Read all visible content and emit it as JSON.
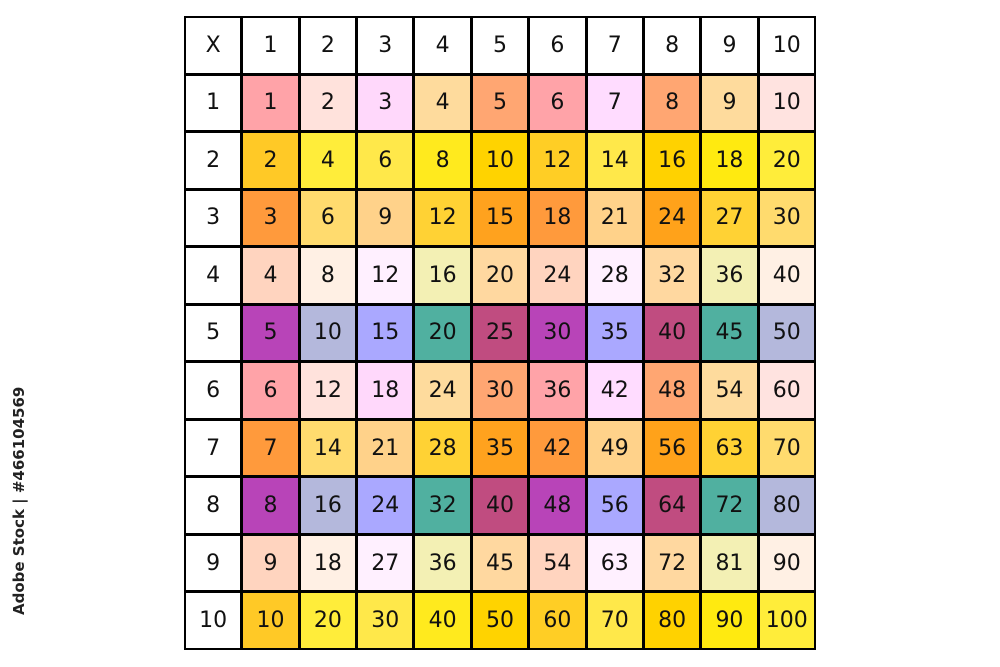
{
  "corner": "X",
  "headers": [
    "1",
    "2",
    "3",
    "4",
    "5",
    "6",
    "7",
    "8",
    "9",
    "10"
  ],
  "watermark": "Adobe Stock | #466104569",
  "palettes": {
    "A": [
      "#ffa3a8",
      "#ffe2dc",
      "#ffd8fb",
      "#fedb9d",
      "#ffa672",
      "#ffa3a8",
      "#ffdcff",
      "#ffa672",
      "#fedb9d",
      "#ffe3e0"
    ],
    "B": [
      "#ffc926",
      "#ffed3a",
      "#ffe84a",
      "#ffea1e",
      "#ffd300",
      "#ffce25",
      "#ffe84a",
      "#ffd200",
      "#ffea10",
      "#ffed3a"
    ],
    "C": [
      "#ff9a3c",
      "#ffdb6e",
      "#ffd28a",
      "#ffd234",
      "#ffa21e",
      "#ff9a3c",
      "#ffd28a",
      "#ffa21a",
      "#ffd234",
      "#ffdb6e"
    ],
    "D": [
      "#ffd4bf",
      "#fff0e4",
      "#fff0ff",
      "#f3f0b4",
      "#ffd8a0",
      "#ffd4bf",
      "#fff0ff",
      "#ffd8a0",
      "#f3f0b4",
      "#fff0e4"
    ],
    "E": [
      "#b844b8",
      "#b4b8dc",
      "#aaa8ff",
      "#50b0a0",
      "#c04c80",
      "#b844b8",
      "#aaa8ff",
      "#c04c80",
      "#50b0a0",
      "#b4b8dc"
    ]
  },
  "rows": [
    {
      "label": "1",
      "palette": "A",
      "values": [
        "1",
        "2",
        "3",
        "4",
        "5",
        "6",
        "7",
        "8",
        "9",
        "10"
      ]
    },
    {
      "label": "2",
      "palette": "B",
      "values": [
        "2",
        "4",
        "6",
        "8",
        "10",
        "12",
        "14",
        "16",
        "18",
        "20"
      ]
    },
    {
      "label": "3",
      "palette": "C",
      "values": [
        "3",
        "6",
        "9",
        "12",
        "15",
        "18",
        "21",
        "24",
        "27",
        "30"
      ]
    },
    {
      "label": "4",
      "palette": "D",
      "values": [
        "4",
        "8",
        "12",
        "16",
        "20",
        "24",
        "28",
        "32",
        "36",
        "40"
      ]
    },
    {
      "label": "5",
      "palette": "E",
      "values": [
        "5",
        "10",
        "15",
        "20",
        "25",
        "30",
        "35",
        "40",
        "45",
        "50"
      ]
    },
    {
      "label": "6",
      "palette": "A",
      "values": [
        "6",
        "12",
        "18",
        "24",
        "30",
        "36",
        "42",
        "48",
        "54",
        "60"
      ]
    },
    {
      "label": "7",
      "palette": "C",
      "values": [
        "7",
        "14",
        "21",
        "28",
        "35",
        "42",
        "49",
        "56",
        "63",
        "70"
      ]
    },
    {
      "label": "8",
      "palette": "E",
      "values": [
        "8",
        "16",
        "24",
        "32",
        "40",
        "48",
        "56",
        "64",
        "72",
        "80"
      ]
    },
    {
      "label": "9",
      "palette": "D",
      "values": [
        "9",
        "18",
        "27",
        "36",
        "45",
        "54",
        "63",
        "72",
        "81",
        "90"
      ]
    },
    {
      "label": "10",
      "palette": "B",
      "values": [
        "10",
        "20",
        "30",
        "40",
        "50",
        "60",
        "70",
        "80",
        "90",
        "100"
      ]
    }
  ]
}
